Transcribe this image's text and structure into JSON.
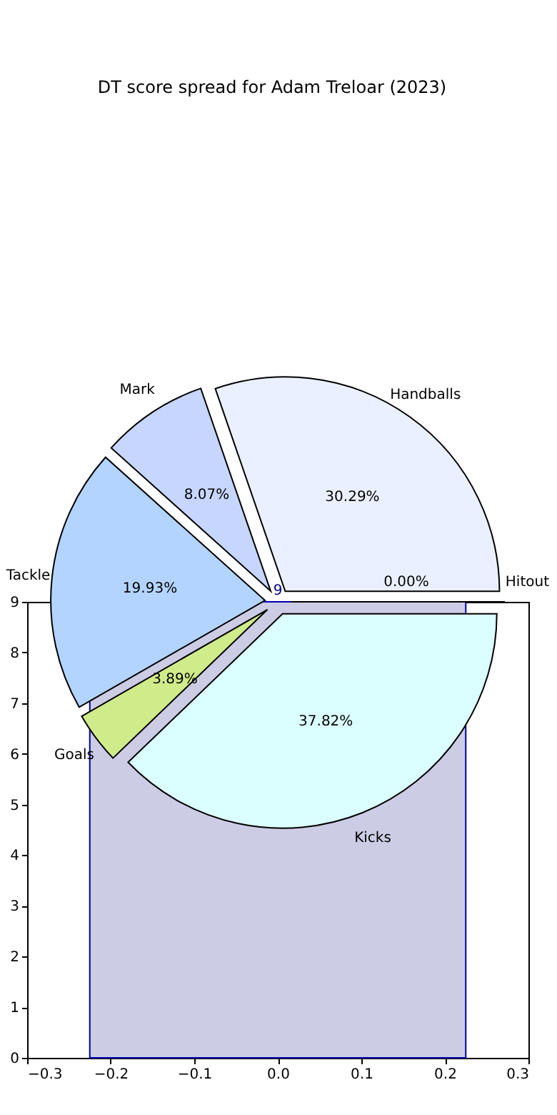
{
  "chart_data": [
    {
      "type": "histogram",
      "title": "DT score spread for Adam Treloar (2023)",
      "bins": [
        -0.225,
        0.225
      ],
      "values": [
        9
      ],
      "value_labels": [
        "9"
      ],
      "color": "#ccccE5",
      "xlim": [
        -0.3,
        0.3
      ],
      "xticks": [
        -0.3,
        -0.2,
        -0.1,
        {
          "value": 0,
          "label": "0.0"
        },
        0.1,
        0.2,
        0.3
      ],
      "ylim": [
        0,
        9
      ],
      "yticks": [
        0,
        1,
        2,
        3,
        4,
        5,
        6,
        7,
        8,
        9
      ],
      "grid": false
    },
    {
      "type": "pie",
      "categories": [
        "Handballs",
        "Mark",
        "Tackle",
        "Goals",
        "Kicks",
        "Hitout"
      ],
      "values": [
        30.29,
        8.07,
        19.93,
        3.89,
        37.82,
        0.0
      ],
      "value_labels": [
        "30.29%",
        "8.07%",
        "19.93%",
        "3.89%",
        "37.82%",
        "0.00%"
      ],
      "colors": [
        "#eaf0ff",
        "#c6d6ff",
        "#b3d4ff",
        "#d0eb8a",
        "#dbfffe",
        "#e6e6e6"
      ]
    }
  ]
}
